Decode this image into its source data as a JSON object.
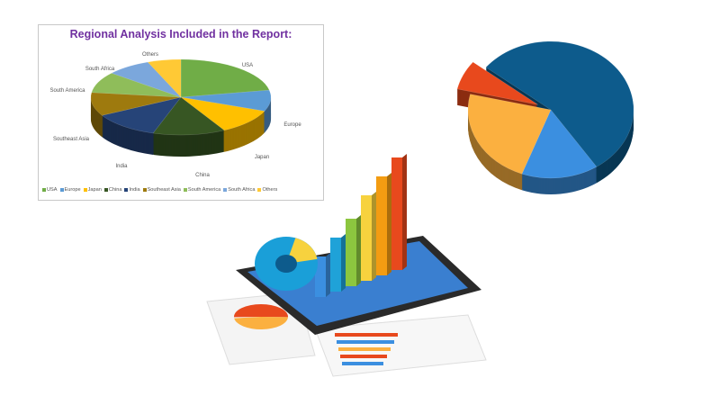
{
  "chart_data": [
    {
      "type": "pie",
      "title": "Regional Analysis Included in the Report:",
      "style": "3d",
      "legend_placement": "bottom",
      "categories": [
        "USA",
        "Europe",
        "Japan",
        "China",
        "India",
        "Southeast Asia",
        "South America",
        "South Africa",
        "Others"
      ],
      "values": [
        22,
        9,
        11,
        13,
        12,
        10,
        9,
        8,
        6
      ],
      "colors": [
        "#70ad47",
        "#5b9bd5",
        "#ffc000",
        "#375623",
        "#264478",
        "#9e7a0e",
        "#8fbd5a",
        "#7ba7dc",
        "#ffc935"
      ]
    },
    {
      "type": "pie",
      "style": "3d",
      "values": [
        55,
        15,
        23,
        7
      ],
      "colors": [
        "#0d5b8c",
        "#3b8fe0",
        "#fbb040",
        "#e8491d"
      ],
      "exploded": [
        false,
        false,
        false,
        true
      ]
    }
  ]
}
